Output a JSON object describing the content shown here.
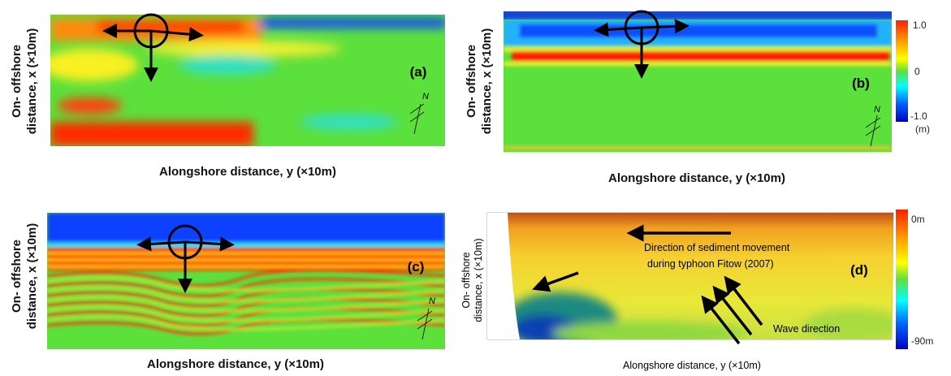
{
  "panels": [
    {
      "label": "(a)",
      "y_axis_label": [
        "On- offshore",
        "distance, x (×10m)"
      ],
      "x_axis_label": "Alongshore distance, y (×10m)",
      "north": "N"
    },
    {
      "label": "(b)",
      "y_axis_label": [
        "On- offshore",
        "distance, x (×10m)"
      ],
      "x_axis_label": "Alongshore distance, y (×10m)",
      "north": "N",
      "colorbar": {
        "ticks": [
          "1.0",
          "0",
          "-1.0"
        ],
        "unit": "(m)"
      }
    },
    {
      "label": "(c)",
      "y_axis_label": [
        "On- offshore",
        "distance, x (×10m)"
      ],
      "x_axis_label": "Alongshore distance, y (×10m)",
      "north": "N"
    },
    {
      "label": "(d)",
      "y_axis_label": [
        "On- offshore",
        "distance, x (×10m)"
      ],
      "x_axis_label": "Alongshore distance, y (×10m)",
      "colorbar": {
        "ticks": [
          "0m",
          "-90m"
        ]
      },
      "annotations": {
        "sediment": [
          "Direction of sediment movement",
          "during typhoon Fitow (2007)"
        ],
        "wave": "Wave direction"
      }
    }
  ]
}
